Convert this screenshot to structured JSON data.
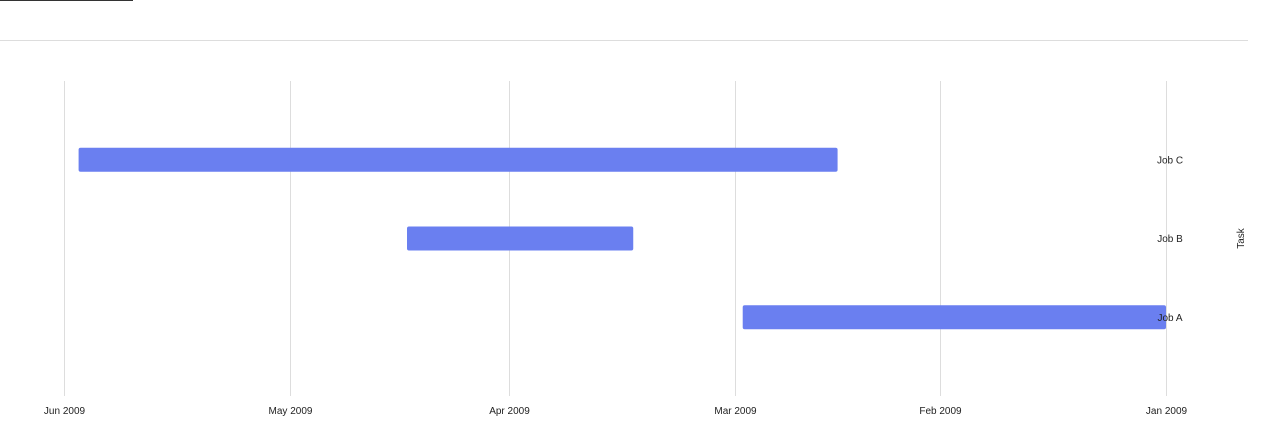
{
  "chart_data": {
    "type": "bar",
    "orientation": "horizontal",
    "x_axis_reversed": true,
    "x_ticks": [
      "Jun 2009",
      "May 2009",
      "Apr 2009",
      "Mar 2009",
      "Feb 2009",
      "Jan 2009"
    ],
    "xlim": [
      "2009-06-01",
      "2009-01-01"
    ],
    "ylabel": "Task",
    "y_axis_side": "right",
    "categories": [
      "Job C",
      "Job B",
      "Job A"
    ],
    "tasks": [
      {
        "task": "Job C",
        "start": "2009-02-15",
        "finish": "2009-05-30"
      },
      {
        "task": "Job B",
        "start": "2009-03-15",
        "finish": "2009-04-15"
      },
      {
        "task": "Job A",
        "start": "2009-01-01",
        "finish": "2009-02-28"
      }
    ],
    "bar_color": "#6a7ff0",
    "grid": true
  }
}
